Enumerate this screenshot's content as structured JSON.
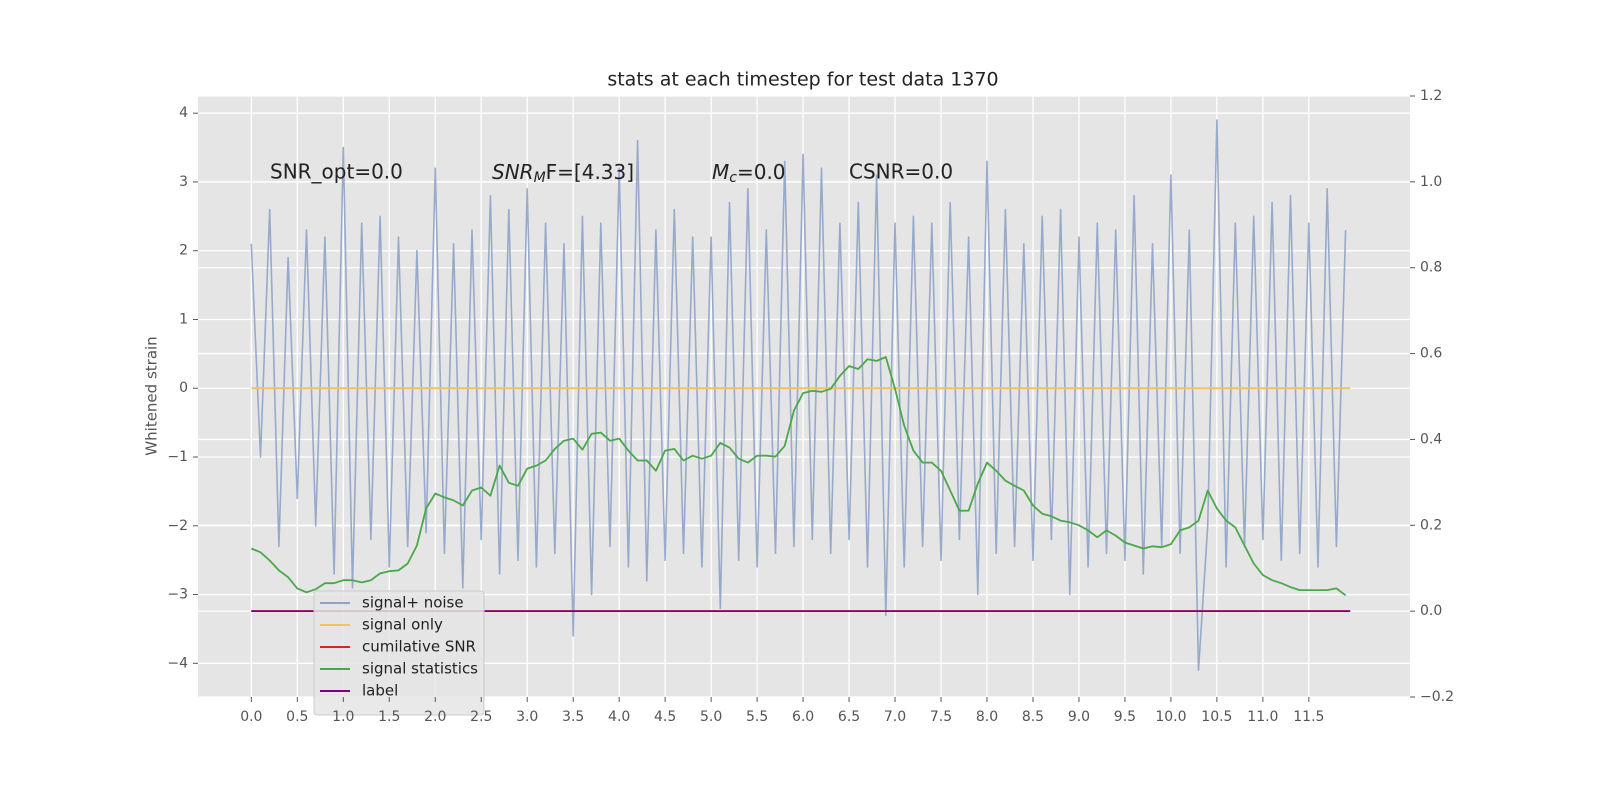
{
  "chart_data": {
    "type": "line",
    "title": "stats at each timestep for test data 1370",
    "ylabel": "Whitened strain",
    "annotations": [
      {
        "text": "SNR_opt=0.0"
      },
      {
        "base": "SNR",
        "sub": "M",
        "rest": "F=[4.33]"
      },
      {
        "base": "M",
        "sub": "c",
        "rest": "=0.0"
      },
      {
        "text": "CSNR=0.0"
      }
    ],
    "x": [
      0,
      0.1,
      0.2,
      0.3,
      0.4,
      0.5,
      0.6,
      0.7,
      0.8,
      0.9,
      1.0,
      1.1,
      1.2,
      1.3,
      1.4,
      1.5,
      1.6,
      1.7,
      1.8,
      1.9,
      2.0,
      2.1,
      2.2,
      2.3,
      2.4,
      2.5,
      2.6,
      2.7,
      2.8,
      2.9,
      3.0,
      3.1,
      3.2,
      3.3,
      3.4,
      3.5,
      3.6,
      3.7,
      3.8,
      3.9,
      4.0,
      4.1,
      4.2,
      4.3,
      4.4,
      4.5,
      4.6,
      4.7,
      4.8,
      4.9,
      5.0,
      5.1,
      5.2,
      5.3,
      5.4,
      5.5,
      5.6,
      5.7,
      5.8,
      5.9,
      6.0,
      6.1,
      6.2,
      6.3,
      6.4,
      6.5,
      6.6,
      6.7,
      6.8,
      6.9,
      7.0,
      7.1,
      7.2,
      7.3,
      7.4,
      7.5,
      7.6,
      7.7,
      7.8,
      7.9,
      8.0,
      8.1,
      8.2,
      8.3,
      8.4,
      8.5,
      8.6,
      8.7,
      8.8,
      8.9,
      9.0,
      9.1,
      9.2,
      9.3,
      9.4,
      9.5,
      9.6,
      9.7,
      9.8,
      9.9,
      10.0,
      10.1,
      10.2,
      10.3,
      10.4,
      10.5,
      10.6,
      10.7,
      10.8,
      10.9,
      11.0,
      11.1,
      11.2,
      11.3,
      11.4,
      11.5,
      11.6,
      11.7,
      11.8,
      11.9
    ],
    "series": [
      {
        "name": "signal+ noise",
        "color": "#8fa3c8",
        "axis": "y",
        "values": [
          2.1,
          -1.0,
          2.6,
          -2.3,
          1.9,
          -1.6,
          2.3,
          -2.0,
          2.2,
          -2.7,
          3.5,
          -2.9,
          2.4,
          -2.2,
          2.5,
          -2.6,
          2.2,
          -2.3,
          2.0,
          -2.1,
          3.2,
          -2.4,
          2.1,
          -2.9,
          2.3,
          -2.2,
          2.8,
          -2.7,
          2.6,
          -2.5,
          2.9,
          -2.6,
          2.4,
          -2.4,
          2.1,
          -3.6,
          2.5,
          -3.0,
          2.4,
          -2.3,
          3.2,
          -2.6,
          3.6,
          -2.8,
          2.3,
          -2.5,
          2.6,
          -2.4,
          2.2,
          -2.6,
          2.2,
          -3.2,
          2.7,
          -2.5,
          2.9,
          -2.6,
          2.3,
          -2.4,
          3.3,
          -2.3,
          3.4,
          -2.2,
          3.2,
          -2.4,
          2.4,
          -2.2,
          2.7,
          -2.6,
          3.1,
          -3.3,
          2.4,
          -2.6,
          2.5,
          -2.3,
          2.4,
          -2.5,
          2.7,
          -2.2,
          2.2,
          -3.0,
          3.3,
          -2.4,
          2.6,
          -2.3,
          2.1,
          -2.5,
          2.5,
          -2.2,
          2.6,
          -3.0,
          2.2,
          -2.6,
          2.4,
          -2.4,
          2.3,
          -2.5,
          2.8,
          -2.7,
          2.1,
          -2.3,
          3.1,
          -2.4,
          2.3,
          -4.1,
          -2.0,
          3.9,
          -2.6,
          2.4,
          -2.3,
          2.5,
          -2.2,
          2.7,
          -2.5,
          2.8,
          -2.4,
          2.4,
          -2.6,
          2.9,
          -2.3,
          2.3
        ]
      },
      {
        "name": "signal only",
        "color": "#f2c45a",
        "axis": "y",
        "x": [
          0,
          11.95
        ],
        "values": [
          0,
          0
        ]
      },
      {
        "name": "cumilative SNR",
        "color": "#d62728",
        "axis": "y2",
        "x": [
          0,
          11.95
        ],
        "values": [
          0,
          0
        ]
      },
      {
        "name": "signal statistics",
        "color": "#4aa84a",
        "axis": "y2",
        "values": [
          0.146,
          0.137,
          0.118,
          0.095,
          0.079,
          0.053,
          0.044,
          0.051,
          0.065,
          0.065,
          0.072,
          0.072,
          0.067,
          0.072,
          0.088,
          0.093,
          0.095,
          0.111,
          0.153,
          0.239,
          0.274,
          0.265,
          0.258,
          0.246,
          0.281,
          0.288,
          0.269,
          0.339,
          0.299,
          0.292,
          0.332,
          0.339,
          0.351,
          0.378,
          0.397,
          0.402,
          0.376,
          0.413,
          0.416,
          0.397,
          0.402,
          0.374,
          0.351,
          0.351,
          0.327,
          0.374,
          0.378,
          0.351,
          0.362,
          0.355,
          0.362,
          0.392,
          0.381,
          0.355,
          0.346,
          0.362,
          0.362,
          0.36,
          0.385,
          0.467,
          0.508,
          0.513,
          0.511,
          0.518,
          0.548,
          0.571,
          0.564,
          0.587,
          0.583,
          0.592,
          0.518,
          0.432,
          0.374,
          0.346,
          0.346,
          0.327,
          0.281,
          0.234,
          0.234,
          0.297,
          0.346,
          0.327,
          0.304,
          0.292,
          0.281,
          0.246,
          0.227,
          0.221,
          0.211,
          0.207,
          0.2,
          0.188,
          0.172,
          0.188,
          0.176,
          0.16,
          0.153,
          0.146,
          0.151,
          0.149,
          0.156,
          0.188,
          0.195,
          0.211,
          0.281,
          0.239,
          0.211,
          0.195,
          0.153,
          0.111,
          0.084,
          0.072,
          0.065,
          0.056,
          0.049,
          0.049,
          0.049,
          0.049,
          0.053,
          0.037
        ]
      },
      {
        "name": "label",
        "color": "#800080",
        "axis": "y2",
        "x": [
          0,
          11.95
        ],
        "values": [
          0,
          0
        ]
      }
    ],
    "xlim": [
      -0.58,
      12.6
    ],
    "xticks": [
      {
        "value": 0,
        "label": "0.0"
      },
      0.5,
      {
        "value": 1,
        "label": "1.0"
      },
      1.5,
      {
        "value": 2,
        "label": "2.0"
      },
      2.5,
      {
        "value": 3,
        "label": "3.0"
      },
      3.5,
      {
        "value": 4,
        "label": "4.0"
      },
      4.5,
      {
        "value": 5,
        "label": "5.0"
      },
      5.5,
      {
        "value": 6,
        "label": "6.0"
      },
      6.5,
      {
        "value": 7,
        "label": "7.0"
      },
      7.5,
      {
        "value": 8,
        "label": "8.0"
      },
      8.5,
      {
        "value": 9,
        "label": "9.0"
      },
      9.5,
      {
        "value": 10,
        "label": "10.0"
      },
      10.5,
      {
        "value": 11,
        "label": "11.0"
      },
      11.5
    ],
    "ylim": [
      -4.49,
      4.25
    ],
    "yticks": [
      {
        "value": -4,
        "label": "−4"
      },
      {
        "value": -3,
        "label": "−3"
      },
      {
        "value": -2,
        "label": "−2"
      },
      {
        "value": -1,
        "label": "−1"
      },
      0,
      1,
      2,
      3,
      4
    ],
    "y2lim": [
      -0.2,
      1.2
    ],
    "y2ticks": [
      {
        "value": -0.2,
        "label": "−0.2"
      },
      {
        "value": 0,
        "label": "0.0"
      },
      0.2,
      0.4,
      0.6,
      0.8,
      {
        "value": 1,
        "label": "1.0"
      },
      1.2
    ],
    "grid": true,
    "legend": "lower left"
  }
}
